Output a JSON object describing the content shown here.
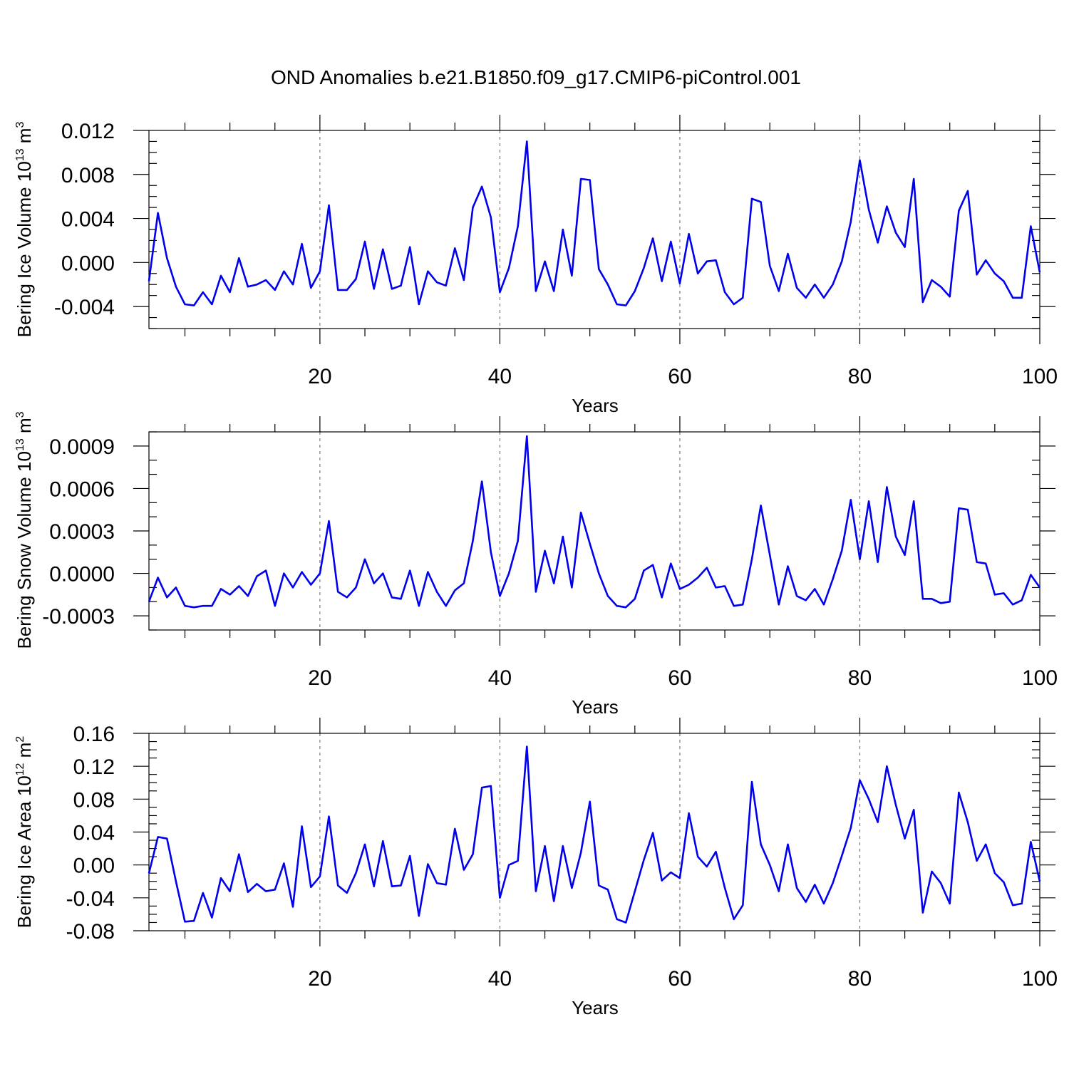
{
  "figure": {
    "title": "OND Anomalies b.e21.B1850.f09_g17.CMIP6-piControl.001",
    "line_color": "#0000ee"
  },
  "chart_data": [
    {
      "type": "line",
      "title": "OND Anomalies b.e21.B1850.f09_g17.CMIP6-piControl.001",
      "ylabel": "Bering Ice Volume",
      "yunit": {
        "base": "10",
        "exp": "13",
        "unit": "m",
        "unit_exp": "3"
      },
      "xlabel": "Years",
      "xlim": [
        1,
        100
      ],
      "ylim": [
        -0.006,
        0.012
      ],
      "yticks": [
        -0.004,
        0.0,
        0.004,
        0.008,
        0.012
      ],
      "ytick_labels": [
        "-0.004",
        "0.000",
        "0.004",
        "0.008",
        "0.012"
      ],
      "yminor": [
        -0.006,
        -0.005,
        -0.003,
        -0.002,
        -0.001,
        0.001,
        0.002,
        0.003,
        0.005,
        0.006,
        0.007,
        0.009,
        0.01,
        0.011
      ],
      "xticks": [
        20,
        40,
        60,
        80,
        100
      ],
      "xtick_labels": [
        "20",
        "40",
        "60",
        "80",
        "100"
      ],
      "xminor": [
        5,
        10,
        15,
        25,
        30,
        35,
        45,
        50,
        55,
        65,
        70,
        75,
        85,
        90,
        95
      ],
      "grid_x": [
        20,
        40,
        60,
        80
      ],
      "series": [
        {
          "name": "Bering Ice Volume",
          "x": [
            1,
            2,
            3,
            4,
            5,
            6,
            7,
            8,
            9,
            10,
            11,
            12,
            13,
            14,
            15,
            16,
            17,
            18,
            19,
            20,
            21,
            22,
            23,
            24,
            25,
            26,
            27,
            28,
            29,
            30,
            31,
            32,
            33,
            34,
            35,
            36,
            37,
            38,
            39,
            40,
            41,
            42,
            43,
            44,
            45,
            46,
            47,
            48,
            49,
            50,
            51,
            52,
            53,
            54,
            55,
            56,
            57,
            58,
            59,
            60,
            61,
            62,
            63,
            64,
            65,
            66,
            67,
            68,
            69,
            70,
            71,
            72,
            73,
            74,
            75,
            76,
            77,
            78,
            79,
            80,
            81,
            82,
            83,
            84,
            85,
            86,
            87,
            88,
            89,
            90,
            91,
            92,
            93,
            94,
            95,
            96,
            97,
            98,
            99,
            100
          ],
          "values": [
            -0.0017,
            0.0045,
            0.0004,
            -0.0022,
            -0.0038,
            -0.0039,
            -0.0027,
            -0.0038,
            -0.0012,
            -0.0027,
            0.0004,
            -0.0022,
            -0.002,
            -0.0016,
            -0.0025,
            -0.0008,
            -0.002,
            0.0017,
            -0.0023,
            -0.0008,
            0.0052,
            -0.0025,
            -0.0025,
            -0.0015,
            0.0019,
            -0.0024,
            0.0012,
            -0.0024,
            -0.0021,
            0.0014,
            -0.0038,
            -0.0008,
            -0.0018,
            -0.0021,
            0.0013,
            -0.0016,
            0.005,
            0.0069,
            0.0041,
            -0.0027,
            -0.0005,
            0.0033,
            0.011,
            -0.0026,
            0.0001,
            -0.0026,
            0.003,
            -0.0012,
            0.0076,
            0.0075,
            -0.0006,
            -0.002,
            -0.0038,
            -0.0039,
            -0.0026,
            -0.0005,
            0.0022,
            -0.0017,
            0.0019,
            -0.0019,
            0.0026,
            -0.001,
            0.0001,
            0.0002,
            -0.0027,
            -0.0038,
            -0.0032,
            0.0058,
            0.0055,
            -0.0003,
            -0.0026,
            0.0008,
            -0.0023,
            -0.0032,
            -0.002,
            -0.0032,
            -0.002,
            0.0001,
            0.0037,
            0.0093,
            0.0048,
            0.0018,
            0.0051,
            0.0027,
            0.0014,
            0.0076,
            -0.0036,
            -0.0016,
            -0.0022,
            -0.0031,
            0.0047,
            0.0065,
            -0.0011,
            0.0002,
            -0.001,
            -0.0017,
            -0.0032,
            -0.0032,
            0.0033,
            -0.0009
          ]
        }
      ]
    },
    {
      "type": "line",
      "ylabel": "Bering Snow Volume",
      "yunit": {
        "base": "10",
        "exp": "13",
        "unit": "m",
        "unit_exp": "3"
      },
      "xlabel": "Years",
      "xlim": [
        1,
        100
      ],
      "ylim": [
        -0.0004,
        0.001
      ],
      "yticks": [
        -0.0003,
        0.0,
        0.0003,
        0.0006,
        0.0009
      ],
      "ytick_labels": [
        "-0.0003",
        "0.0000",
        "0.0003",
        "0.0006",
        "0.0009"
      ],
      "yminor": [
        -0.0004,
        -0.0002,
        -0.0001,
        0.0001,
        0.0002,
        0.0004,
        0.0005,
        0.0007,
        0.0008,
        0.001
      ],
      "xticks": [
        20,
        40,
        60,
        80,
        100
      ],
      "xtick_labels": [
        "20",
        "40",
        "60",
        "80",
        "100"
      ],
      "xminor": [
        5,
        10,
        15,
        25,
        30,
        35,
        45,
        50,
        55,
        65,
        70,
        75,
        85,
        90,
        95
      ],
      "grid_x": [
        20,
        40,
        60,
        80
      ],
      "series": [
        {
          "name": "Bering Snow Volume",
          "x": [
            1,
            2,
            3,
            4,
            5,
            6,
            7,
            8,
            9,
            10,
            11,
            12,
            13,
            14,
            15,
            16,
            17,
            18,
            19,
            20,
            21,
            22,
            23,
            24,
            25,
            26,
            27,
            28,
            29,
            30,
            31,
            32,
            33,
            34,
            35,
            36,
            37,
            38,
            39,
            40,
            41,
            42,
            43,
            44,
            45,
            46,
            47,
            48,
            49,
            50,
            51,
            52,
            53,
            54,
            55,
            56,
            57,
            58,
            59,
            60,
            61,
            62,
            63,
            64,
            65,
            66,
            67,
            68,
            69,
            70,
            71,
            72,
            73,
            74,
            75,
            76,
            77,
            78,
            79,
            80,
            81,
            82,
            83,
            84,
            85,
            86,
            87,
            88,
            89,
            90,
            91,
            92,
            93,
            94,
            95,
            96,
            97,
            98,
            99,
            100
          ],
          "values": [
            -0.0002,
            -3e-05,
            -0.00017,
            -0.0001,
            -0.00023,
            -0.00024,
            -0.00023,
            -0.00023,
            -0.00011,
            -0.00015,
            -9e-05,
            -0.00016,
            -2e-05,
            2e-05,
            -0.00023,
            0.0,
            -0.0001,
            1e-05,
            -8e-05,
            0.0,
            0.00037,
            -0.00013,
            -0.00017,
            -0.0001,
            0.0001,
            -7e-05,
            0.0,
            -0.00017,
            -0.00018,
            2e-05,
            -0.00023,
            1e-05,
            -0.00013,
            -0.00023,
            -0.00012,
            -7e-05,
            0.00023,
            0.00065,
            0.00015,
            -0.00016,
            0.0,
            0.00023,
            0.00097,
            -0.00013,
            0.00016,
            -7e-05,
            0.00026,
            -0.0001,
            0.00043,
            0.00021,
            0.0,
            -0.00016,
            -0.00023,
            -0.00024,
            -0.00018,
            2e-05,
            6e-05,
            -0.00017,
            7e-05,
            -0.00011,
            -8e-05,
            -3e-05,
            4e-05,
            -0.0001,
            -9e-05,
            -0.00023,
            -0.00022,
            0.0001,
            0.00048,
            0.00013,
            -0.00022,
            5e-05,
            -0.00016,
            -0.00019,
            -0.00011,
            -0.00022,
            -4e-05,
            0.00016,
            0.00052,
            0.0001,
            0.00051,
            8e-05,
            0.00061,
            0.00026,
            0.00013,
            0.00051,
            -0.00018,
            -0.00018,
            -0.00021,
            -0.0002,
            0.00046,
            0.00045,
            8e-05,
            7e-05,
            -0.00015,
            -0.00014,
            -0.00022,
            -0.00019,
            -1e-05,
            -0.0001
          ]
        }
      ]
    },
    {
      "type": "line",
      "ylabel": "Bering Ice Area",
      "yunit": {
        "base": "10",
        "exp": "12",
        "unit": "m",
        "unit_exp": "2"
      },
      "xlabel": "Years",
      "xlim": [
        1,
        100
      ],
      "ylim": [
        -0.08,
        0.16
      ],
      "yticks": [
        -0.08,
        -0.04,
        0.0,
        0.04,
        0.08,
        0.12,
        0.16
      ],
      "ytick_labels": [
        "-0.08",
        "-0.04",
        "0.00",
        "0.04",
        "0.08",
        "0.12",
        "0.16"
      ],
      "yminor": [
        -0.07,
        -0.06,
        -0.05,
        -0.03,
        -0.02,
        -0.01,
        0.01,
        0.02,
        0.03,
        0.05,
        0.06,
        0.07,
        0.09,
        0.1,
        0.11,
        0.13,
        0.14,
        0.15
      ],
      "xticks": [
        20,
        40,
        60,
        80,
        100
      ],
      "xtick_labels": [
        "20",
        "40",
        "60",
        "80",
        "100"
      ],
      "xminor": [
        5,
        10,
        15,
        25,
        30,
        35,
        45,
        50,
        55,
        65,
        70,
        75,
        85,
        90,
        95
      ],
      "grid_x": [
        20,
        40,
        60,
        80
      ],
      "series": [
        {
          "name": "Bering Ice Area",
          "x": [
            1,
            2,
            3,
            4,
            5,
            6,
            7,
            8,
            9,
            10,
            11,
            12,
            13,
            14,
            15,
            16,
            17,
            18,
            19,
            20,
            21,
            22,
            23,
            24,
            25,
            26,
            27,
            28,
            29,
            30,
            31,
            32,
            33,
            34,
            35,
            36,
            37,
            38,
            39,
            40,
            41,
            42,
            43,
            44,
            45,
            46,
            47,
            48,
            49,
            50,
            51,
            52,
            53,
            54,
            55,
            56,
            57,
            58,
            59,
            60,
            61,
            62,
            63,
            64,
            65,
            66,
            67,
            68,
            69,
            70,
            71,
            72,
            73,
            74,
            75,
            76,
            77,
            78,
            79,
            80,
            81,
            82,
            83,
            84,
            85,
            86,
            87,
            88,
            89,
            90,
            91,
            92,
            93,
            94,
            95,
            96,
            97,
            98,
            99,
            100
          ],
          "values": [
            -0.01,
            0.034,
            0.032,
            -0.02,
            -0.069,
            -0.068,
            -0.034,
            -0.064,
            -0.016,
            -0.032,
            0.013,
            -0.033,
            -0.023,
            -0.032,
            -0.03,
            0.002,
            -0.051,
            0.047,
            -0.027,
            -0.014,
            0.059,
            -0.025,
            -0.034,
            -0.01,
            0.025,
            -0.026,
            0.029,
            -0.026,
            -0.025,
            0.011,
            -0.062,
            0.001,
            -0.022,
            -0.024,
            0.044,
            -0.006,
            0.013,
            0.094,
            0.096,
            -0.04,
            0.0,
            0.005,
            0.144,
            -0.032,
            0.023,
            -0.044,
            0.023,
            -0.028,
            0.015,
            0.077,
            -0.025,
            -0.03,
            -0.066,
            -0.07,
            -0.032,
            0.006,
            0.039,
            -0.019,
            -0.009,
            -0.016,
            0.063,
            0.01,
            -0.002,
            0.016,
            -0.028,
            -0.066,
            -0.049,
            0.101,
            0.025,
            0.0,
            -0.032,
            0.025,
            -0.028,
            -0.045,
            -0.024,
            -0.047,
            -0.022,
            0.011,
            0.045,
            0.103,
            0.08,
            0.052,
            0.12,
            0.073,
            0.032,
            0.067,
            -0.058,
            -0.008,
            -0.022,
            -0.047,
            0.088,
            0.052,
            0.005,
            0.025,
            -0.01,
            -0.021,
            -0.049,
            -0.047,
            0.028,
            -0.02
          ]
        }
      ]
    }
  ]
}
